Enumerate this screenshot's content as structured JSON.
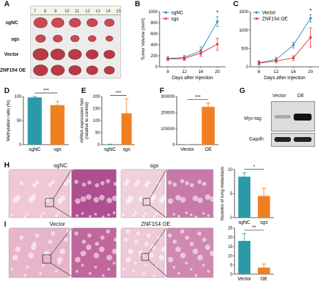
{
  "panels": {
    "A": "A",
    "B": "B",
    "C": "C",
    "D": "D",
    "E": "E",
    "F": "F",
    "G": "G",
    "H": "H",
    "I": "I"
  },
  "panel_a": {
    "ruler": [
      "7",
      "8",
      "9",
      "10",
      "11",
      "12",
      "13",
      "14",
      "15"
    ],
    "rows": [
      "sgNC",
      "sgs",
      "Vector",
      "ZNF154 OE"
    ]
  },
  "panel_g": {
    "cols": [
      "Vector",
      "OE"
    ],
    "rows": [
      "Myc-tag",
      "Gapdh"
    ]
  },
  "panel_h": {
    "labels": [
      "sgNC",
      "sgs"
    ]
  },
  "panel_i": {
    "labels": [
      "Vector",
      "ZNF154 OE"
    ]
  },
  "colors": {
    "blue": "#2e8fc0",
    "red": "#e2353a",
    "teal": "#2a9aa8",
    "orange": "#f07f22"
  },
  "chart_data": [
    {
      "id": "B",
      "type": "line",
      "ylabel": "Tumor Volume (mm³)",
      "xlabel": "Days after Injection",
      "x": [
        8,
        12,
        16,
        20
      ],
      "xlim": [
        6,
        22
      ],
      "ylim": [
        0,
        1000
      ],
      "yticks": [
        0,
        200,
        400,
        600,
        800,
        1000
      ],
      "annotation": "*",
      "series": [
        {
          "name": "sgNC",
          "color": "blue",
          "values": [
            150,
            170,
            290,
            820
          ],
          "err": [
            30,
            40,
            70,
            90
          ]
        },
        {
          "name": "sgs",
          "color": "red",
          "values": [
            140,
            150,
            250,
            410
          ],
          "err": [
            25,
            30,
            60,
            110
          ]
        }
      ]
    },
    {
      "id": "C",
      "type": "line",
      "ylabel": "",
      "xlabel": "Days after Injection",
      "x": [
        8,
        12,
        16,
        20
      ],
      "xlim": [
        6,
        22
      ],
      "ylim": [
        0,
        1500
      ],
      "yticks": [
        0,
        500,
        1000,
        1500
      ],
      "annotation": "*",
      "series": [
        {
          "name": "Vector",
          "color": "blue",
          "values": [
            110,
            200,
            590,
            1320
          ],
          "err": [
            50,
            60,
            80,
            100
          ]
        },
        {
          "name": "ZNF154 OE",
          "color": "red",
          "values": [
            100,
            160,
            240,
            800
          ],
          "err": [
            50,
            50,
            60,
            260
          ]
        }
      ]
    },
    {
      "id": "D",
      "type": "bar",
      "ylabel": "Methylation ratio (%)",
      "categories": [
        "sgNC",
        "sgs"
      ],
      "values": [
        98,
        82
      ],
      "err": [
        2,
        8
      ],
      "ylim": [
        0,
        100
      ],
      "yticks": [
        0,
        50,
        100
      ],
      "colors": [
        "teal",
        "orange"
      ],
      "annotation": "***"
    },
    {
      "id": "E",
      "type": "bar",
      "ylabel": "mRNA expression fold (relative to control)",
      "categories": [
        "sgNC",
        "sgs"
      ],
      "values": [
        1,
        130
      ],
      "err": [
        1,
        60
      ],
      "ylim": [
        0,
        200
      ],
      "yticks": [
        0,
        50,
        100,
        150,
        200
      ],
      "colors": [
        "teal",
        "orange"
      ],
      "annotation": "***"
    },
    {
      "id": "F",
      "type": "bar",
      "ylabel": "",
      "categories": [
        "Vector",
        "OE"
      ],
      "values": [
        1,
        235000
      ],
      "err": [
        1,
        25000
      ],
      "ylim": [
        0,
        300000
      ],
      "yticks": [
        0,
        100000,
        200000,
        300000
      ],
      "colors": [
        "teal",
        "orange"
      ],
      "annotation": "***"
    },
    {
      "id": "H",
      "type": "bar",
      "ylabel": "Nudoles of lung metastasis",
      "categories": [
        "sgNC",
        "sgs"
      ],
      "values": [
        8.5,
        4.5
      ],
      "err": [
        0.8,
        1.6
      ],
      "ylim": [
        0,
        10
      ],
      "yticks": [
        0,
        5,
        10
      ],
      "colors": [
        "teal",
        "orange"
      ],
      "annotation": "*"
    },
    {
      "id": "I",
      "type": "bar",
      "ylabel": "",
      "categories": [
        "Vector",
        "OE"
      ],
      "values": [
        18,
        3.5
      ],
      "err": [
        4,
        2
      ],
      "ylim": [
        0,
        25
      ],
      "yticks": [
        0,
        5,
        10,
        15,
        20,
        25
      ],
      "colors": [
        "teal",
        "orange"
      ],
      "annotation": "**"
    }
  ]
}
